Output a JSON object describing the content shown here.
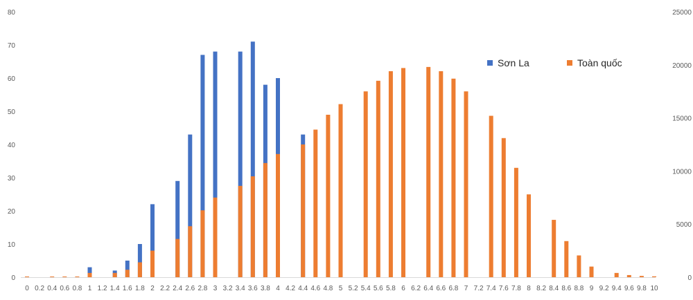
{
  "chart_data": {
    "type": "bar",
    "title": "",
    "xlabel": "",
    "ylabel": "",
    "categories": [
      "0",
      "0.2",
      "0.4",
      "0.6",
      "0.8",
      "1",
      "1.2",
      "1.4",
      "1.6",
      "1.8",
      "2",
      "2.2",
      "2.4",
      "2.6",
      "2.8",
      "3",
      "3.2",
      "3.4",
      "3.6",
      "3.8",
      "4",
      "4.2",
      "4.4",
      "4.6",
      "4.8",
      "5",
      "5.2",
      "5.4",
      "5.6",
      "5.8",
      "6",
      "6.2",
      "6.4",
      "6.6",
      "6.8",
      "7",
      "7.2",
      "7.4",
      "7.6",
      "7.8",
      "8",
      "8.2",
      "8.4",
      "8.6",
      "8.8",
      "9",
      "9.2",
      "9.4",
      "9.6",
      "9.8",
      "10"
    ],
    "y_left": {
      "min": 0,
      "max": 80,
      "ticks": [
        0,
        10,
        20,
        30,
        40,
        50,
        60,
        70,
        80
      ]
    },
    "y_right": {
      "min": 0,
      "max": 25000,
      "ticks": [
        0,
        5000,
        10000,
        15000,
        20000,
        25000
      ]
    },
    "series": [
      {
        "name": "Sơn La",
        "axis": "left",
        "color": "#4472C4",
        "values": [
          0,
          0,
          0,
          0,
          0,
          3,
          0,
          2,
          5,
          10,
          22,
          0,
          29,
          43,
          67,
          68,
          0,
          68,
          71,
          58,
          60,
          0,
          43,
          0,
          0,
          0,
          0,
          0,
          0,
          0,
          0,
          0,
          0,
          0,
          0,
          0,
          0,
          0,
          0,
          0,
          0,
          0,
          0,
          0,
          0,
          0,
          0,
          0,
          0,
          0,
          0
        ]
      },
      {
        "name": "Toàn quốc",
        "axis": "right",
        "color": "#ED7D31",
        "values": [
          60,
          0,
          30,
          40,
          60,
          400,
          0,
          400,
          700,
          1400,
          2500,
          0,
          3600,
          4800,
          6300,
          7500,
          0,
          8600,
          9500,
          10750,
          11600,
          0,
          12500,
          13900,
          15300,
          16300,
          0,
          17500,
          18500,
          19400,
          19700,
          0,
          19800,
          19400,
          18700,
          17500,
          0,
          15200,
          13100,
          10300,
          7800,
          0,
          5400,
          3400,
          2050,
          1000,
          0,
          400,
          200,
          120,
          80
        ]
      }
    ],
    "legend": {
      "placement": "top-right"
    },
    "grid": false
  }
}
